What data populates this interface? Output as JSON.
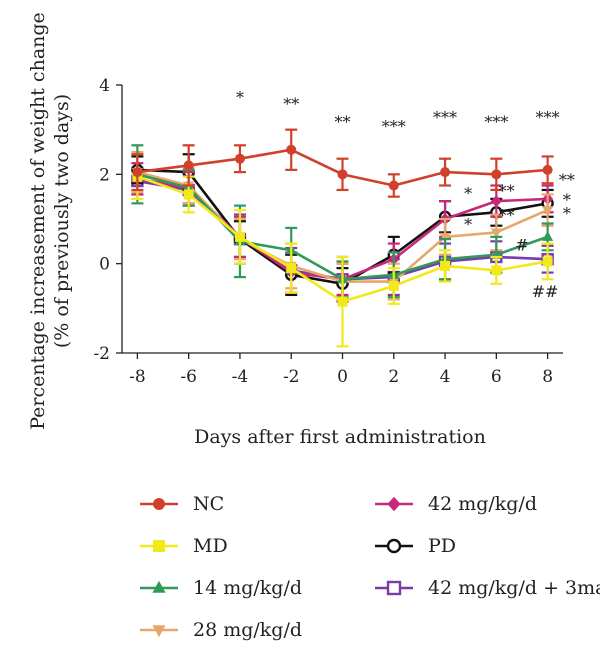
{
  "chart_data": {
    "type": "line",
    "title": "",
    "xlabel": "Days after first administration",
    "ylabel_line1": "Percentage increasement of weight change",
    "ylabel_line2": "(% of previously two days)",
    "x": [
      -8,
      -6,
      -4,
      -2,
      0,
      2,
      4,
      6,
      8
    ],
    "x_tick_labels": [
      "-8",
      "-6",
      "-4",
      "-2",
      "0",
      "2",
      "4",
      "6",
      "8"
    ],
    "xlim": [
      -8.6,
      8.6
    ],
    "ylim": [
      -2,
      4
    ],
    "y_ticks": [
      -2,
      0,
      2,
      4
    ],
    "y_tick_labels": [
      "-2",
      "0",
      "2",
      "4"
    ],
    "grid": false,
    "legend_position": "bottom",
    "series": [
      {
        "name": "NC",
        "color": "#d0402a",
        "marker": "circle",
        "values": [
          2.05,
          2.2,
          2.35,
          2.55,
          2.0,
          1.75,
          2.05,
          2.0,
          2.1
        ],
        "errors": [
          0.4,
          0.45,
          0.3,
          0.45,
          0.35,
          0.25,
          0.3,
          0.35,
          0.3
        ]
      },
      {
        "name": "MD",
        "color": "#f2e91a",
        "marker": "square",
        "values": [
          1.95,
          1.55,
          0.6,
          -0.1,
          -0.85,
          -0.5,
          -0.05,
          -0.15,
          0.05
        ],
        "errors": [
          0.5,
          0.4,
          0.6,
          0.55,
          1.0,
          0.4,
          0.35,
          0.3,
          0.4
        ]
      },
      {
        "name": "14 mg/kg/d",
        "color": "#2f9a5a",
        "marker": "triangle",
        "values": [
          2.0,
          1.7,
          0.5,
          0.3,
          -0.35,
          -0.25,
          0.1,
          0.2,
          0.6
        ],
        "errors": [
          0.65,
          0.4,
          0.8,
          0.5,
          0.4,
          0.5,
          0.45,
          0.4,
          0.3
        ]
      },
      {
        "name": "28 mg/kg/d",
        "color": "#e6a86a",
        "marker": "triangle-down",
        "values": [
          2.05,
          1.75,
          0.55,
          -0.05,
          -0.4,
          -0.4,
          0.6,
          0.7,
          1.2
        ],
        "errors": [
          0.45,
          0.4,
          0.45,
          0.5,
          0.4,
          0.4,
          0.4,
          0.4,
          0.35
        ]
      },
      {
        "name": "42 mg/kg/d",
        "color": "#c8287a",
        "marker": "diamond",
        "values": [
          1.9,
          1.7,
          0.6,
          -0.2,
          -0.35,
          0.1,
          1.0,
          1.4,
          1.45
        ],
        "errors": [
          0.35,
          0.35,
          0.45,
          0.45,
          0.35,
          0.35,
          0.4,
          0.35,
          0.3
        ]
      },
      {
        "name": "PD",
        "color": "#111111",
        "marker": "circle-open",
        "values": [
          2.1,
          2.05,
          0.55,
          -0.25,
          -0.45,
          0.2,
          1.05,
          1.15,
          1.35
        ],
        "errors": [
          0.3,
          0.4,
          0.4,
          0.45,
          0.35,
          0.4,
          0.35,
          0.3,
          0.3
        ]
      },
      {
        "name": "42 mg/kg/d + 3ma",
        "color": "#7a3aa8",
        "marker": "square-open",
        "values": [
          1.85,
          1.65,
          0.55,
          -0.15,
          -0.35,
          -0.3,
          0.05,
          0.15,
          0.1
        ],
        "errors": [
          0.3,
          0.35,
          0.55,
          0.5,
          0.5,
          0.4,
          0.4,
          0.35,
          0.3
        ]
      }
    ],
    "annotations": [
      {
        "text": "*",
        "x": -4,
        "y": 3.6
      },
      {
        "text": "**",
        "x": -2,
        "y": 3.45
      },
      {
        "text": "**",
        "x": 0,
        "y": 3.05
      },
      {
        "text": "***",
        "x": 2,
        "y": 2.95
      },
      {
        "text": "***",
        "x": 4,
        "y": 3.15
      },
      {
        "text": "***",
        "x": 6,
        "y": 3.05
      },
      {
        "text": "***",
        "x": 8,
        "y": 3.15
      },
      {
        "text": "*",
        "x": 4.9,
        "y": 1.45
      },
      {
        "text": "*",
        "x": 4.9,
        "y": 0.75
      },
      {
        "text": "**",
        "x": 6.4,
        "y": 1.5
      },
      {
        "text": "**",
        "x": 6.4,
        "y": 0.95
      },
      {
        "text": "#",
        "x": 7.0,
        "y": 0.3
      },
      {
        "text": "##",
        "x": 7.9,
        "y": -0.75
      },
      {
        "text": "**",
        "x": 8.75,
        "y": 1.75
      },
      {
        "text": "*",
        "x": 8.75,
        "y": 1.3
      },
      {
        "text": "*",
        "x": 8.75,
        "y": 1.0
      }
    ]
  }
}
